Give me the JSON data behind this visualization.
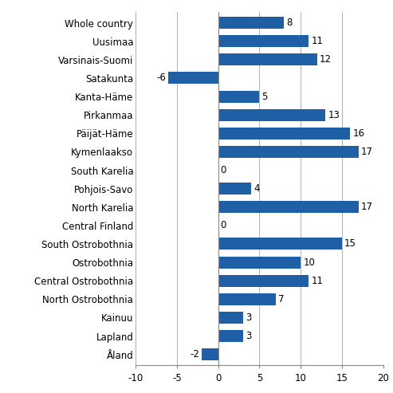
{
  "categories": [
    "Whole country",
    "Uusimaa",
    "Varsinais-Suomi",
    "Satakunta",
    "Kanta-Häme",
    "Pirkanmaa",
    "Päijät-Häme",
    "Kymenlaakso",
    "South Karelia",
    "Pohjois-Savo",
    "North Karelia",
    "Central Finland",
    "South Ostrobothnia",
    "Ostrobothnia",
    "Central Ostrobothnia",
    "North Ostrobothnia",
    "Kainuu",
    "Lapland",
    "Åland"
  ],
  "values": [
    8,
    11,
    12,
    -6,
    5,
    13,
    16,
    17,
    0,
    4,
    17,
    0,
    15,
    10,
    11,
    7,
    3,
    3,
    -2
  ],
  "bar_color": "#1f5fa6",
  "xlim": [
    -10,
    20
  ],
  "xticks": [
    -10,
    -5,
    0,
    5,
    10,
    15,
    20
  ],
  "figure_bg": "#ffffff",
  "axes_bg": "#ffffff",
  "grid_color": "#b0b0b0",
  "bar_height": 0.65,
  "fontsize_labels": 8.5,
  "fontsize_ticks": 8.5
}
